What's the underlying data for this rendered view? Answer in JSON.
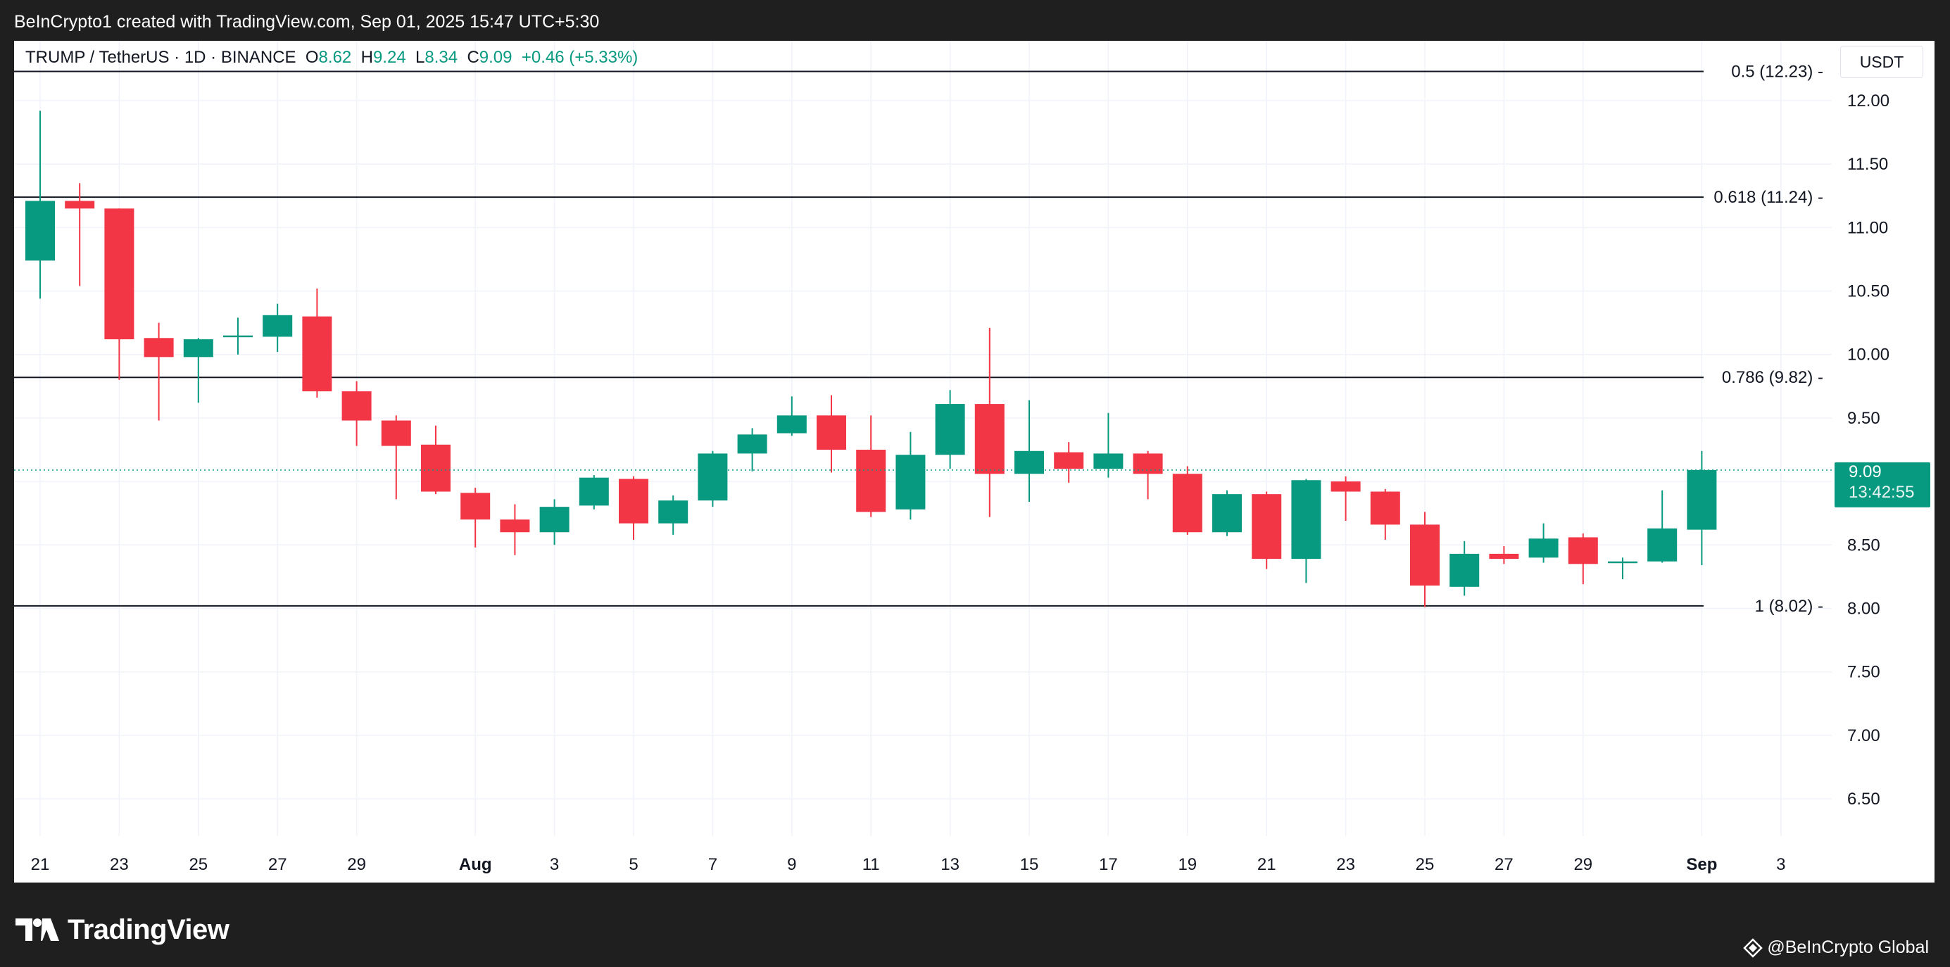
{
  "header": {
    "attribution": "BeInCrypto1 created with TradingView.com, Sep 01, 2025 15:47 UTC+5:30"
  },
  "legend": {
    "symbol": "TRUMP / TetherUS · 1D · BINANCE",
    "open_label": "O",
    "open": "8.62",
    "high_label": "H",
    "high": "9.24",
    "low_label": "L",
    "low": "8.34",
    "close_label": "C",
    "close": "9.09",
    "change": "+0.46 (+5.33%)"
  },
  "price_axis": {
    "unit": "USDT",
    "last_price": "9.09",
    "countdown": "13:42:55"
  },
  "footer": {
    "brand": "TradingView",
    "credit": "@BeInCrypto Global",
    "brand_icon": "tradingview-logo-icon",
    "credit_icon": "beincrypto-diamond-icon"
  },
  "colors": {
    "up": "#089981",
    "down": "#f23645",
    "fib_line": "#131722",
    "grid": "#f0f3fa",
    "last_price_line": "#089981"
  },
  "chart_data": {
    "type": "candlestick",
    "ylim": [
      6.2,
      12.25
    ],
    "y_ticks": [
      "6.50",
      "7.00",
      "7.50",
      "8.00",
      "8.50",
      "9.00",
      "9.50",
      "10.00",
      "10.50",
      "11.00",
      "11.50",
      "12.00"
    ],
    "x_ticks": [
      {
        "i": 0,
        "label": "21"
      },
      {
        "i": 2,
        "label": "23"
      },
      {
        "i": 4,
        "label": "25"
      },
      {
        "i": 6,
        "label": "27"
      },
      {
        "i": 8,
        "label": "29"
      },
      {
        "i": 11,
        "label": "Aug",
        "bold": true
      },
      {
        "i": 13,
        "label": "3"
      },
      {
        "i": 15,
        "label": "5"
      },
      {
        "i": 17,
        "label": "7"
      },
      {
        "i": 19,
        "label": "9"
      },
      {
        "i": 21,
        "label": "11"
      },
      {
        "i": 23,
        "label": "13"
      },
      {
        "i": 25,
        "label": "15"
      },
      {
        "i": 27,
        "label": "17"
      },
      {
        "i": 29,
        "label": "19"
      },
      {
        "i": 31,
        "label": "21"
      },
      {
        "i": 33,
        "label": "23"
      },
      {
        "i": 35,
        "label": "25"
      },
      {
        "i": 37,
        "label": "27"
      },
      {
        "i": 39,
        "label": "29"
      },
      {
        "i": 42,
        "label": "Sep",
        "bold": true
      },
      {
        "i": 44,
        "label": "3"
      }
    ],
    "fib_levels": [
      {
        "value": 12.23,
        "label": "0.5 (12.23)"
      },
      {
        "value": 11.24,
        "label": "0.618 (11.24)"
      },
      {
        "value": 9.82,
        "label": "0.786 (9.82)"
      },
      {
        "value": 8.02,
        "label": "1 (8.02)"
      }
    ],
    "candles": [
      {
        "o": 10.74,
        "h": 11.92,
        "l": 10.44,
        "c": 11.21
      },
      {
        "o": 11.21,
        "h": 11.35,
        "l": 10.54,
        "c": 11.15
      },
      {
        "o": 11.15,
        "h": 11.15,
        "l": 9.8,
        "c": 10.12
      },
      {
        "o": 10.13,
        "h": 10.25,
        "l": 9.48,
        "c": 9.98
      },
      {
        "o": 9.98,
        "h": 10.13,
        "l": 9.62,
        "c": 10.12
      },
      {
        "o": 10.14,
        "h": 10.29,
        "l": 10.0,
        "c": 10.15
      },
      {
        "o": 10.14,
        "h": 10.4,
        "l": 10.02,
        "c": 10.31
      },
      {
        "o": 10.3,
        "h": 10.52,
        "l": 9.66,
        "c": 9.71
      },
      {
        "o": 9.71,
        "h": 9.79,
        "l": 9.28,
        "c": 9.48
      },
      {
        "o": 9.48,
        "h": 9.52,
        "l": 8.86,
        "c": 9.28
      },
      {
        "o": 9.29,
        "h": 9.44,
        "l": 8.9,
        "c": 8.92
      },
      {
        "o": 8.91,
        "h": 8.95,
        "l": 8.48,
        "c": 8.7
      },
      {
        "o": 8.7,
        "h": 8.82,
        "l": 8.42,
        "c": 8.6
      },
      {
        "o": 8.6,
        "h": 8.86,
        "l": 8.5,
        "c": 8.8
      },
      {
        "o": 8.81,
        "h": 9.05,
        "l": 8.78,
        "c": 9.03
      },
      {
        "o": 9.02,
        "h": 9.04,
        "l": 8.54,
        "c": 8.67
      },
      {
        "o": 8.67,
        "h": 8.89,
        "l": 8.58,
        "c": 8.85
      },
      {
        "o": 8.85,
        "h": 9.24,
        "l": 8.8,
        "c": 9.22
      },
      {
        "o": 9.22,
        "h": 9.42,
        "l": 9.08,
        "c": 9.37
      },
      {
        "o": 9.38,
        "h": 9.67,
        "l": 9.36,
        "c": 9.52
      },
      {
        "o": 9.52,
        "h": 9.68,
        "l": 9.07,
        "c": 9.25
      },
      {
        "o": 9.25,
        "h": 9.52,
        "l": 8.72,
        "c": 8.76
      },
      {
        "o": 8.78,
        "h": 9.39,
        "l": 8.7,
        "c": 9.21
      },
      {
        "o": 9.21,
        "h": 9.72,
        "l": 9.1,
        "c": 9.61
      },
      {
        "o": 9.61,
        "h": 10.21,
        "l": 8.72,
        "c": 9.06
      },
      {
        "o": 9.06,
        "h": 9.64,
        "l": 8.84,
        "c": 9.24
      },
      {
        "o": 9.23,
        "h": 9.31,
        "l": 8.99,
        "c": 9.1
      },
      {
        "o": 9.1,
        "h": 9.54,
        "l": 9.03,
        "c": 9.22
      },
      {
        "o": 9.22,
        "h": 9.24,
        "l": 8.86,
        "c": 9.06
      },
      {
        "o": 9.06,
        "h": 9.12,
        "l": 8.58,
        "c": 8.6
      },
      {
        "o": 8.6,
        "h": 8.93,
        "l": 8.57,
        "c": 8.9
      },
      {
        "o": 8.9,
        "h": 8.92,
        "l": 8.31,
        "c": 8.39
      },
      {
        "o": 8.39,
        "h": 9.02,
        "l": 8.2,
        "c": 9.01
      },
      {
        "o": 9.0,
        "h": 9.04,
        "l": 8.69,
        "c": 8.92
      },
      {
        "o": 8.92,
        "h": 8.94,
        "l": 8.54,
        "c": 8.66
      },
      {
        "o": 8.66,
        "h": 8.76,
        "l": 8.01,
        "c": 8.18
      },
      {
        "o": 8.17,
        "h": 8.53,
        "l": 8.1,
        "c": 8.43
      },
      {
        "o": 8.43,
        "h": 8.49,
        "l": 8.35,
        "c": 8.39
      },
      {
        "o": 8.4,
        "h": 8.67,
        "l": 8.36,
        "c": 8.55
      },
      {
        "o": 8.56,
        "h": 8.59,
        "l": 8.19,
        "c": 8.35
      },
      {
        "o": 8.36,
        "h": 8.4,
        "l": 8.23,
        "c": 8.37
      },
      {
        "o": 8.37,
        "h": 8.93,
        "l": 8.36,
        "c": 8.63
      },
      {
        "o": 8.62,
        "h": 9.24,
        "l": 8.34,
        "c": 9.09
      }
    ]
  }
}
